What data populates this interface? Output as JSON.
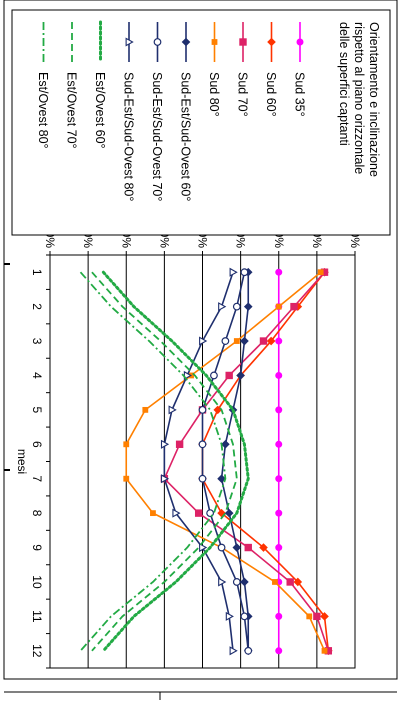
{
  "chart_data": {
    "type": "line",
    "xlabel": "mesi",
    "ylabel": "",
    "x": [
      1,
      2,
      3,
      4,
      5,
      6,
      7,
      8,
      9,
      10,
      11,
      12
    ],
    "ylim": [
      40,
      120
    ],
    "y_ticks": [
      "40%",
      "50%",
      "60%",
      "70%",
      "80%",
      "90%",
      "100%",
      "110%",
      "120%"
    ],
    "grid": true,
    "legend_position": "right",
    "legend_title": "Orientamento e inclinazione rispetto al piano orizzontale delle superfici captanti",
    "legend_title_lines": [
      "Orientamento e inclinazione",
      "rispetto al piano orizzontale",
      "delle superfici captanti"
    ],
    "series": [
      {
        "name": "Sud 35°",
        "color": "#ff00ff",
        "style": "solid",
        "marker": "circle-filled",
        "values": [
          100,
          100,
          100,
          100,
          100,
          100,
          100,
          100,
          100,
          100,
          100,
          100
        ]
      },
      {
        "name": "Sud 60°",
        "color": "#ff3300",
        "style": "solid",
        "marker": "diamond-filled",
        "values": [
          112,
          105,
          98,
          90,
          84,
          80,
          80,
          85,
          96,
          105,
          112,
          113
        ]
      },
      {
        "name": "Sud 70°",
        "color": "#dd2266",
        "style": "solid",
        "marker": "square-filled",
        "values": [
          112,
          104,
          96,
          87,
          80,
          74,
          70,
          79,
          92,
          103,
          110,
          113
        ]
      },
      {
        "name": "Sud 80°",
        "color": "#ff8000",
        "style": "solid",
        "marker": "square-small",
        "values": [
          111,
          100,
          89,
          77,
          65,
          60,
          60,
          67,
          85,
          99,
          108,
          112
        ]
      },
      {
        "name": "Sud-Est/Sud-Ovest 60°",
        "color": "#1f2f6e",
        "style": "solid",
        "marker": "diamond-filled",
        "values": [
          92,
          92,
          91,
          90,
          88,
          86,
          85,
          87,
          89,
          91,
          92,
          92
        ]
      },
      {
        "name": "Sud-Est/Sud-Ovest 70°",
        "color": "#1f2f6e",
        "style": "solid",
        "marker": "circle-open",
        "values": [
          91,
          89,
          86,
          83,
          80,
          80,
          80,
          82,
          85,
          89,
          91,
          92
        ]
      },
      {
        "name": "Sud-Est/Sud-Ovest 80°",
        "color": "#1f2f6e",
        "style": "solid",
        "marker": "triangle-open",
        "values": [
          88,
          85,
          80,
          76,
          72,
          70,
          70,
          73,
          80,
          85,
          87,
          88
        ]
      },
      {
        "name": "Est/Ovest 60°",
        "color": "#22aa44",
        "style": "dotted",
        "marker": "none",
        "values": [
          54,
          62,
          72,
          81,
          88,
          91,
          92,
          89,
          82,
          73,
          62,
          54
        ]
      },
      {
        "name": "Est/Ovest 70°",
        "color": "#22aa44",
        "style": "dashed",
        "marker": "none",
        "values": [
          51,
          59,
          69,
          78,
          85,
          88,
          89,
          86,
          79,
          70,
          59,
          51
        ]
      },
      {
        "name": "Est/Ovest 80°",
        "color": "#22aa44",
        "style": "dashdot",
        "marker": "none",
        "values": [
          48,
          56,
          66,
          75,
          82,
          85,
          86,
          83,
          76,
          67,
          56,
          48
        ]
      }
    ]
  }
}
